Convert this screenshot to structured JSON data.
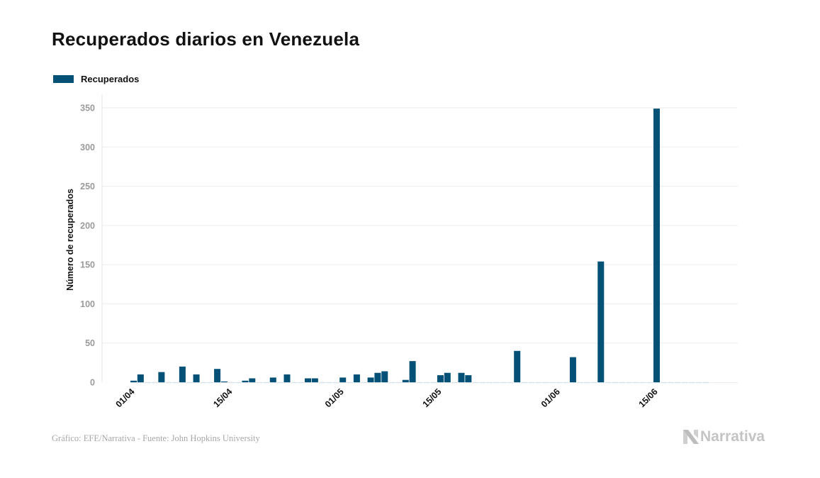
{
  "chart_data": {
    "type": "bar",
    "title": "Recuperados diarios en Venezuela",
    "xlabel": "",
    "ylabel": "Número de recuperados",
    "ylim": [
      0,
      350
    ],
    "yticks": [
      0,
      50,
      100,
      150,
      200,
      250,
      300,
      350
    ],
    "grid": true,
    "legend": {
      "position": "top-left",
      "entries": [
        "Recuperados"
      ]
    },
    "start_date": "01/04",
    "num_days": 83,
    "xtick_labels": [
      {
        "label": "01/04",
        "day_index": 0
      },
      {
        "label": "15/04",
        "day_index": 14
      },
      {
        "label": "01/05",
        "day_index": 30
      },
      {
        "label": "15/05",
        "day_index": 44
      },
      {
        "label": "01/06",
        "day_index": 61
      },
      {
        "label": "15/06",
        "day_index": 75
      }
    ],
    "series": [
      {
        "name": "Recuperados",
        "color": "#035177",
        "points": [
          {
            "date": "01/04",
            "day_index": 0,
            "value": 2
          },
          {
            "date": "02/04",
            "day_index": 1,
            "value": 10
          },
          {
            "date": "05/04",
            "day_index": 4,
            "value": 13
          },
          {
            "date": "08/04",
            "day_index": 7,
            "value": 20
          },
          {
            "date": "10/04",
            "day_index": 9,
            "value": 10
          },
          {
            "date": "13/04",
            "day_index": 12,
            "value": 17
          },
          {
            "date": "14/04",
            "day_index": 13,
            "value": 1
          },
          {
            "date": "17/04",
            "day_index": 16,
            "value": 2
          },
          {
            "date": "18/04",
            "day_index": 17,
            "value": 5
          },
          {
            "date": "21/04",
            "day_index": 20,
            "value": 6
          },
          {
            "date": "23/04",
            "day_index": 22,
            "value": 10
          },
          {
            "date": "26/04",
            "day_index": 25,
            "value": 5
          },
          {
            "date": "27/04",
            "day_index": 26,
            "value": 5
          },
          {
            "date": "01/05",
            "day_index": 30,
            "value": 6
          },
          {
            "date": "03/05",
            "day_index": 32,
            "value": 10
          },
          {
            "date": "05/05",
            "day_index": 34,
            "value": 6
          },
          {
            "date": "06/05",
            "day_index": 35,
            "value": 12
          },
          {
            "date": "07/05",
            "day_index": 36,
            "value": 14
          },
          {
            "date": "10/05",
            "day_index": 39,
            "value": 3
          },
          {
            "date": "11/05",
            "day_index": 40,
            "value": 27
          },
          {
            "date": "15/05",
            "day_index": 44,
            "value": 9
          },
          {
            "date": "16/05",
            "day_index": 45,
            "value": 12
          },
          {
            "date": "18/05",
            "day_index": 47,
            "value": 12
          },
          {
            "date": "19/05",
            "day_index": 48,
            "value": 9
          },
          {
            "date": "26/05",
            "day_index": 55,
            "value": 40
          },
          {
            "date": "03/06",
            "day_index": 63,
            "value": 32
          },
          {
            "date": "07/06",
            "day_index": 67,
            "value": 154
          },
          {
            "date": "15/06",
            "day_index": 75,
            "value": 349
          }
        ]
      }
    ]
  },
  "legend": {
    "label": "Recuperados",
    "color": "#035177"
  },
  "footer": {
    "source": "Gráfico: EFE/Narrativa - Fuente: John Hopkins University",
    "brand": "Narrativa"
  }
}
